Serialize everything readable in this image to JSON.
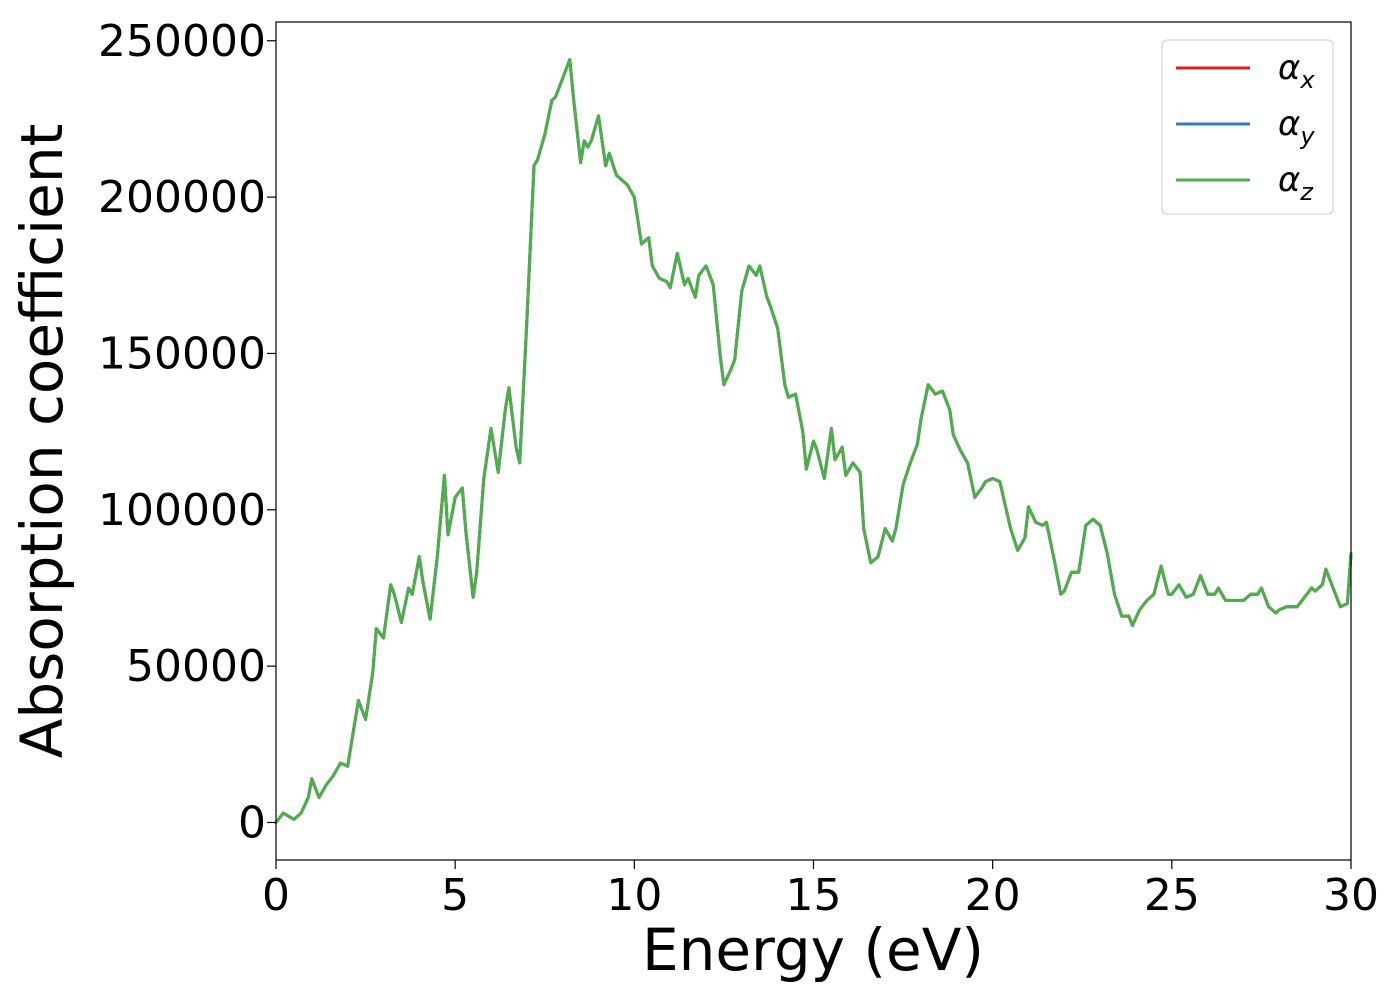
{
  "chart_data": {
    "type": "line",
    "title": "",
    "xlabel": "Energy (eV)",
    "ylabel": "Absorption coefficient",
    "xlim": [
      0,
      30
    ],
    "ylim": [
      -12000,
      256000
    ],
    "x_ticks": [
      0,
      5,
      10,
      15,
      20,
      25,
      30
    ],
    "y_ticks": [
      0,
      50000,
      100000,
      150000,
      200000,
      250000
    ],
    "grid": false,
    "legend_position": "top-right",
    "legend": [
      {
        "name": "α",
        "sub": "x",
        "color": "#e41a1c"
      },
      {
        "name": "α",
        "sub": "y",
        "color": "#377eb8"
      },
      {
        "name": "α",
        "sub": "z",
        "color": "#4daf4a"
      }
    ],
    "x": [
      0,
      0.2,
      0.5,
      0.7,
      0.9,
      1.0,
      1.2,
      1.4,
      1.6,
      1.8,
      2.0,
      2.2,
      2.3,
      2.5,
      2.7,
      2.8,
      3.0,
      3.2,
      3.3,
      3.5,
      3.7,
      3.8,
      4.0,
      4.1,
      4.3,
      4.5,
      4.7,
      4.8,
      5.0,
      5.2,
      5.3,
      5.5,
      5.6,
      5.8,
      6.0,
      6.2,
      6.4,
      6.5,
      6.7,
      6.8,
      7.0,
      7.2,
      7.3,
      7.5,
      7.7,
      7.8,
      8.0,
      8.2,
      8.3,
      8.5,
      8.6,
      8.7,
      8.8,
      9.0,
      9.2,
      9.3,
      9.5,
      9.7,
      9.8,
      10.0,
      10.2,
      10.4,
      10.5,
      10.7,
      10.9,
      11.0,
      11.2,
      11.4,
      11.5,
      11.7,
      11.8,
      12.0,
      12.2,
      12.4,
      12.5,
      12.7,
      12.8,
      13.0,
      13.2,
      13.4,
      13.5,
      13.7,
      13.8,
      14.0,
      14.2,
      14.3,
      14.5,
      14.7,
      14.8,
      15.0,
      15.1,
      15.3,
      15.5,
      15.6,
      15.8,
      15.9,
      16.1,
      16.3,
      16.4,
      16.6,
      16.8,
      17.0,
      17.2,
      17.3,
      17.5,
      17.7,
      17.9,
      18.0,
      18.2,
      18.4,
      18.6,
      18.8,
      18.9,
      19.1,
      19.3,
      19.5,
      19.7,
      19.8,
      20.0,
      20.2,
      20.4,
      20.5,
      20.7,
      20.9,
      21.0,
      21.2,
      21.4,
      21.5,
      21.7,
      21.9,
      22.0,
      22.2,
      22.4,
      22.6,
      22.8,
      23.0,
      23.2,
      23.4,
      23.6,
      23.8,
      23.9,
      24.1,
      24.3,
      24.5,
      24.7,
      24.9,
      25.0,
      25.2,
      25.4,
      25.6,
      25.8,
      26.0,
      26.2,
      26.3,
      26.5,
      26.7,
      26.9,
      27.0,
      27.2,
      27.4,
      27.5,
      27.7,
      27.9,
      28.0,
      28.2,
      28.4,
      28.5,
      28.7,
      28.9,
      29.0,
      29.2,
      29.3,
      29.5,
      29.7,
      29.9,
      30.0
    ],
    "series": [
      {
        "name": "α_x",
        "color": "#e41a1c",
        "values": [
          0,
          3000,
          1000,
          3000,
          8000,
          14000,
          8000,
          12000,
          15000,
          19000,
          18000,
          32000,
          39000,
          33000,
          48000,
          62000,
          59000,
          76000,
          73000,
          64000,
          75000,
          73000,
          85000,
          77000,
          65000,
          85000,
          111000,
          92000,
          104000,
          107000,
          93000,
          72000,
          80000,
          110000,
          126000,
          112000,
          132000,
          139000,
          120000,
          115000,
          160000,
          210000,
          212000,
          220000,
          231000,
          232000,
          238000,
          244000,
          232000,
          211000,
          218000,
          216000,
          218000,
          226000,
          210000,
          214000,
          207000,
          205000,
          204000,
          200000,
          185000,
          187000,
          178000,
          174000,
          173000,
          171000,
          182000,
          172000,
          174000,
          168000,
          175000,
          178000,
          172000,
          149000,
          140000,
          145000,
          148000,
          170000,
          178000,
          175000,
          178000,
          168000,
          165000,
          158000,
          140000,
          136000,
          137000,
          125000,
          113000,
          122000,
          119000,
          110000,
          126000,
          116000,
          120000,
          111000,
          115000,
          112000,
          94000,
          83000,
          85000,
          94000,
          90000,
          94000,
          108000,
          115000,
          121000,
          129000,
          140000,
          137000,
          138000,
          132000,
          124000,
          119000,
          115000,
          104000,
          107000,
          109000,
          110000,
          109000,
          99000,
          94000,
          87000,
          91000,
          101000,
          96000,
          95000,
          96000,
          85000,
          73000,
          74000,
          80000,
          80000,
          95000,
          97000,
          95000,
          86000,
          73000,
          66000,
          66000,
          63000,
          68000,
          71000,
          73000,
          82000,
          73000,
          73000,
          76000,
          72000,
          73000,
          79000,
          73000,
          73000,
          75000,
          71000,
          71000,
          71000,
          71000,
          73000,
          73000,
          75000,
          69000,
          67000,
          68000,
          69000,
          69000,
          69000,
          72000,
          75000,
          74000,
          76000,
          81000,
          75000,
          69000,
          70000,
          86000
        ]
      },
      {
        "name": "α_y",
        "color": "#377eb8",
        "values": [
          0,
          3000,
          1000,
          3000,
          8000,
          14000,
          8000,
          12000,
          15000,
          19000,
          18000,
          32000,
          39000,
          33000,
          48000,
          62000,
          59000,
          76000,
          73000,
          64000,
          75000,
          73000,
          85000,
          77000,
          65000,
          85000,
          111000,
          92000,
          104000,
          107000,
          93000,
          72000,
          80000,
          110000,
          126000,
          112000,
          132000,
          139000,
          120000,
          115000,
          160000,
          210000,
          212000,
          220000,
          231000,
          232000,
          238000,
          244000,
          232000,
          211000,
          218000,
          216000,
          218000,
          226000,
          210000,
          214000,
          207000,
          205000,
          204000,
          200000,
          185000,
          187000,
          178000,
          174000,
          173000,
          171000,
          182000,
          172000,
          174000,
          168000,
          175000,
          178000,
          172000,
          149000,
          140000,
          145000,
          148000,
          170000,
          178000,
          175000,
          178000,
          168000,
          165000,
          158000,
          140000,
          136000,
          137000,
          125000,
          113000,
          122000,
          119000,
          110000,
          126000,
          116000,
          120000,
          111000,
          115000,
          112000,
          94000,
          83000,
          85000,
          94000,
          90000,
          94000,
          108000,
          115000,
          121000,
          129000,
          140000,
          137000,
          138000,
          132000,
          124000,
          119000,
          115000,
          104000,
          107000,
          109000,
          110000,
          109000,
          99000,
          94000,
          87000,
          91000,
          101000,
          96000,
          95000,
          96000,
          85000,
          73000,
          74000,
          80000,
          80000,
          95000,
          97000,
          95000,
          86000,
          73000,
          66000,
          66000,
          63000,
          68000,
          71000,
          73000,
          82000,
          73000,
          73000,
          76000,
          72000,
          73000,
          79000,
          73000,
          73000,
          75000,
          71000,
          71000,
          71000,
          71000,
          73000,
          73000,
          75000,
          69000,
          67000,
          68000,
          69000,
          69000,
          69000,
          72000,
          75000,
          74000,
          76000,
          81000,
          75000,
          69000,
          70000,
          86000
        ]
      },
      {
        "name": "α_z",
        "color": "#4daf4a",
        "values": [
          0,
          3000,
          1000,
          3000,
          8000,
          14000,
          8000,
          12000,
          15000,
          19000,
          18000,
          32000,
          39000,
          33000,
          48000,
          62000,
          59000,
          76000,
          73000,
          64000,
          75000,
          73000,
          85000,
          77000,
          65000,
          85000,
          111000,
          92000,
          104000,
          107000,
          93000,
          72000,
          80000,
          110000,
          126000,
          112000,
          132000,
          139000,
          120000,
          115000,
          160000,
          210000,
          212000,
          220000,
          231000,
          232000,
          238000,
          244000,
          232000,
          211000,
          218000,
          216000,
          218000,
          226000,
          210000,
          214000,
          207000,
          205000,
          204000,
          200000,
          185000,
          187000,
          178000,
          174000,
          173000,
          171000,
          182000,
          172000,
          174000,
          168000,
          175000,
          178000,
          172000,
          149000,
          140000,
          145000,
          148000,
          170000,
          178000,
          175000,
          178000,
          168000,
          165000,
          158000,
          140000,
          136000,
          137000,
          125000,
          113000,
          122000,
          119000,
          110000,
          126000,
          116000,
          120000,
          111000,
          115000,
          112000,
          94000,
          83000,
          85000,
          94000,
          90000,
          94000,
          108000,
          115000,
          121000,
          129000,
          140000,
          137000,
          138000,
          132000,
          124000,
          119000,
          115000,
          104000,
          107000,
          109000,
          110000,
          109000,
          99000,
          94000,
          87000,
          91000,
          101000,
          96000,
          95000,
          96000,
          85000,
          73000,
          74000,
          80000,
          80000,
          95000,
          97000,
          95000,
          86000,
          73000,
          66000,
          66000,
          63000,
          68000,
          71000,
          73000,
          82000,
          73000,
          73000,
          76000,
          72000,
          73000,
          79000,
          73000,
          73000,
          75000,
          71000,
          71000,
          71000,
          71000,
          73000,
          73000,
          75000,
          69000,
          67000,
          68000,
          69000,
          69000,
          69000,
          72000,
          75000,
          74000,
          76000,
          81000,
          75000,
          69000,
          70000,
          86000
        ]
      }
    ]
  }
}
